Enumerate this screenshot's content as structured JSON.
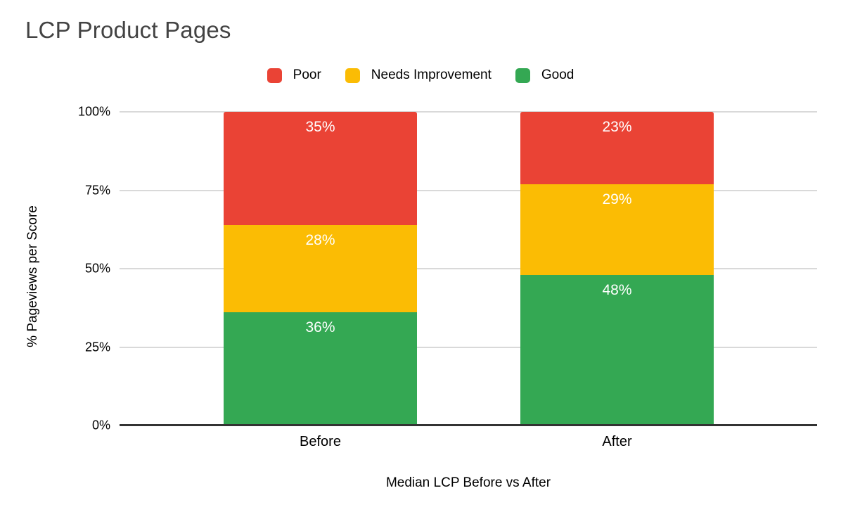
{
  "chart_data": {
    "type": "bar",
    "stacked": true,
    "title": "LCP Product Pages",
    "categories": [
      "Before",
      "After"
    ],
    "series": [
      {
        "name": "Poor",
        "color": "#EA4335",
        "values": [
          35,
          23
        ]
      },
      {
        "name": "Needs Improvement",
        "color": "#FBBC04",
        "values": [
          28,
          29
        ]
      },
      {
        "name": "Good",
        "color": "#34A853",
        "values": [
          36,
          48
        ]
      }
    ],
    "value_suffix": "%",
    "xlabel": "Median LCP Before vs After",
    "ylabel": "% Pageviews per Score",
    "yticks": [
      {
        "label": "0%",
        "value": 0
      },
      {
        "label": "25%",
        "value": 25
      },
      {
        "label": "50%",
        "value": 50
      },
      {
        "label": "75%",
        "value": 75
      },
      {
        "label": "100%",
        "value": 100
      }
    ],
    "ylim": [
      0,
      100
    ],
    "legend_position": "top",
    "grid": true,
    "colors": {
      "background": "#FFFFFF",
      "title_text": "#434343",
      "axis_text": "#000000",
      "gridline": "#D9D9D9",
      "axis_line": "#333333",
      "value_label_text": "#FFFFFF"
    }
  }
}
